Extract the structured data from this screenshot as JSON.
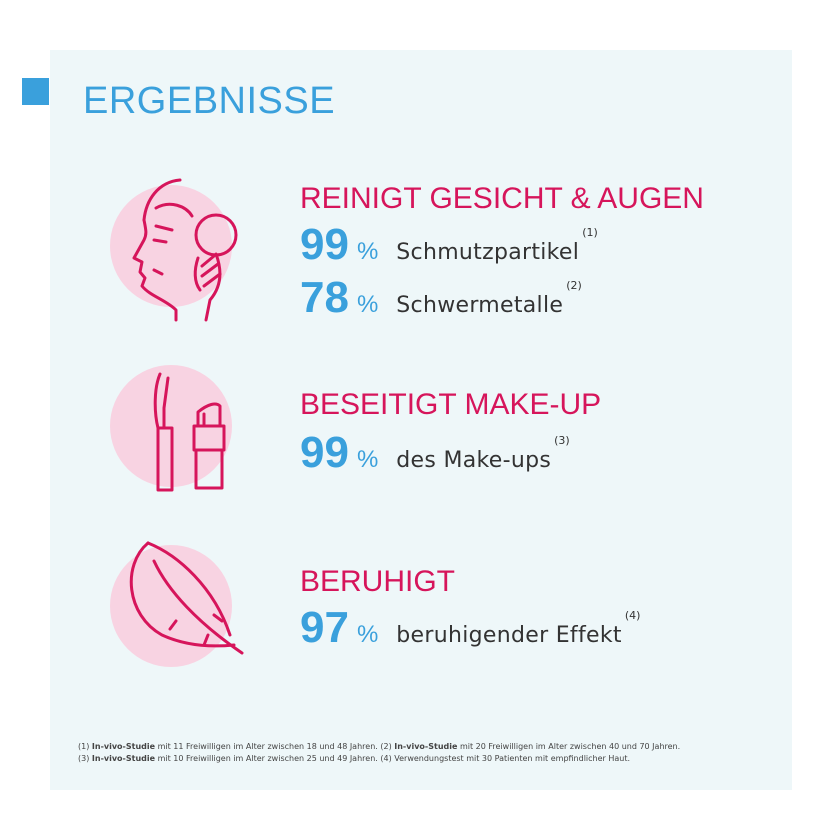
{
  "title": "ERGEBNISSE",
  "colors": {
    "accent_blue": "#3aa0dc",
    "accent_pink": "#d6155b",
    "circle_pink": "#f8d3e2",
    "panel": "#eef7f9"
  },
  "sections": [
    {
      "icon": "face-cleansing-icon",
      "heading": "REINIGT GESICHT & AUGEN",
      "stats": [
        {
          "value": "99",
          "unit": "%",
          "label": "Schmutzpartikel",
          "ref": "(1)"
        },
        {
          "value": "78",
          "unit": "%",
          "label": "Schwermetalle",
          "ref": "(2)"
        }
      ]
    },
    {
      "icon": "mascara-lipstick-icon",
      "heading": "BESEITIGT MAKE-UP",
      "stats": [
        {
          "value": "99",
          "unit": "%",
          "label": "des Make-ups",
          "ref": "(3)"
        }
      ]
    },
    {
      "icon": "feather-icon",
      "heading": "BERUHIGT",
      "stats": [
        {
          "value": "97",
          "unit": "%",
          "label": "beruhigender Effekt",
          "ref": "(4)"
        }
      ]
    }
  ],
  "footnotes": [
    {
      "num": "(1)",
      "bold": "In-vivo-Studie",
      "text": " mit 11 Freiwilligen im Alter zwischen 18 und 48 Jahren."
    },
    {
      "num": "(2)",
      "bold": "In-vivo-Studie",
      "text": " mit 20 Freiwilligen im Alter zwischen 40 und 70 Jahren."
    },
    {
      "num": "(3)",
      "bold": "In-vivo-Studie",
      "text": " mit 10 Freiwilligen im Alter zwischen 25 und 49 Jahren."
    },
    {
      "num": "(4)",
      "bold": "",
      "text": "Verwendungstest mit 30 Patienten mit empfindlicher Haut."
    }
  ]
}
